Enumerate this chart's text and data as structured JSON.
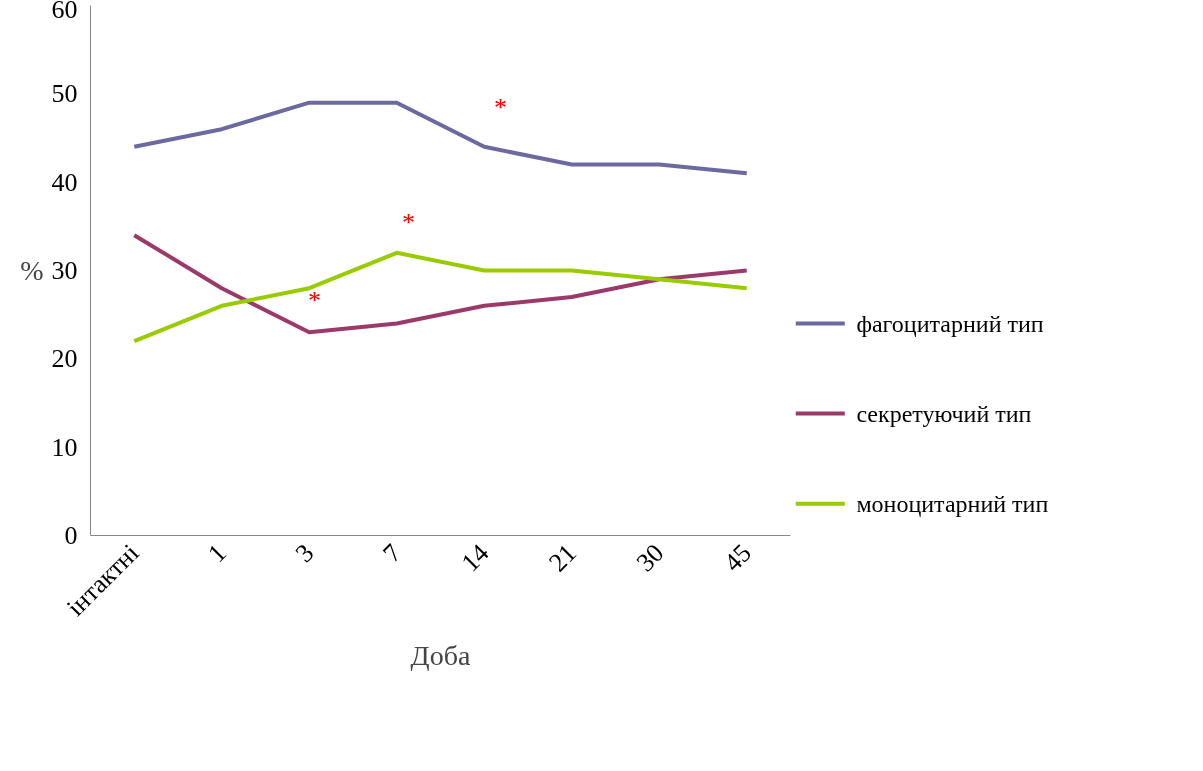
{
  "chart_data": {
    "type": "line",
    "xlabel": "Доба",
    "ylabel": "%",
    "categories": [
      "інтактні",
      "1",
      "3",
      "7",
      "14",
      "21",
      "30",
      "45"
    ],
    "series": [
      {
        "name": "фагоцитарний тип",
        "color": "#6a6aa0",
        "values": [
          44,
          46,
          49,
          49,
          44,
          42,
          42,
          41
        ]
      },
      {
        "name": "секретуючий тип",
        "color": "#9b3a6a",
        "values": [
          34,
          28,
          23,
          24,
          26,
          27,
          29,
          30
        ]
      },
      {
        "name": "моноцитарний тип",
        "color": "#99cc00",
        "values": [
          22,
          26,
          28,
          32,
          30,
          30,
          29,
          28
        ]
      }
    ],
    "ylim": [
      0,
      60
    ],
    "yticks": [
      0,
      10,
      20,
      30,
      40,
      50,
      60
    ],
    "grid": false,
    "legend": "right",
    "marker": "none",
    "line_style": "solid",
    "annotations": [
      "*",
      "*",
      "*"
    ]
  }
}
